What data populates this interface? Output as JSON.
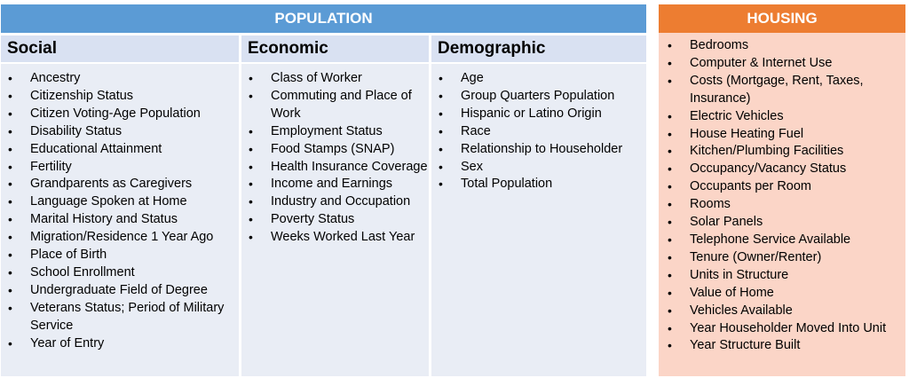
{
  "population": {
    "title": "POPULATION",
    "social": {
      "title": "Social",
      "items": [
        "Ancestry",
        "Citizenship Status",
        "Citizen Voting-Age Population",
        "Disability Status",
        "Educational Attainment",
        "Fertility",
        "Grandparents as Caregivers",
        "Language Spoken at Home",
        "Marital History and Status",
        "Migration/Residence 1 Year Ago",
        "Place of Birth",
        "School Enrollment",
        "Undergraduate Field of Degree",
        "Veterans Status; Period of Military Service",
        "Year of Entry"
      ]
    },
    "economic": {
      "title": "Economic",
      "items": [
        "Class of Worker",
        "Commuting and Place of Work",
        "Employment Status",
        "Food Stamps (SNAP)",
        "Health Insurance Coverage",
        "Income and Earnings",
        "Industry and Occupation",
        "Poverty Status",
        "Weeks Worked Last Year"
      ]
    },
    "demographic": {
      "title": "Demographic",
      "items": [
        "Age",
        "Group Quarters Population",
        "Hispanic or Latino Origin",
        "Race",
        "Relationship to Householder",
        "Sex",
        "Total Population"
      ]
    }
  },
  "housing": {
    "title": "HOUSING",
    "items": [
      "Bedrooms",
      "Computer & Internet Use",
      "Costs (Mortgage, Rent, Taxes, Insurance)",
      "Electric Vehicles",
      "House Heating Fuel",
      "Kitchen/Plumbing Facilities",
      "Occupancy/Vacancy Status",
      "Occupants per Room",
      "Rooms",
      "Solar Panels",
      "Telephone Service Available",
      "Tenure  (Owner/Renter)",
      "Units in Structure",
      "Value of Home",
      "Vehicles Available",
      "Year Householder  Moved Into Unit",
      "Year Structure Built"
    ]
  },
  "colors": {
    "population_header": "#5b9bd5",
    "housing_header": "#ed7d31",
    "subheader": "#d9e1f2",
    "population_body": "#e9edf5",
    "housing_body": "#fbd5c7"
  }
}
